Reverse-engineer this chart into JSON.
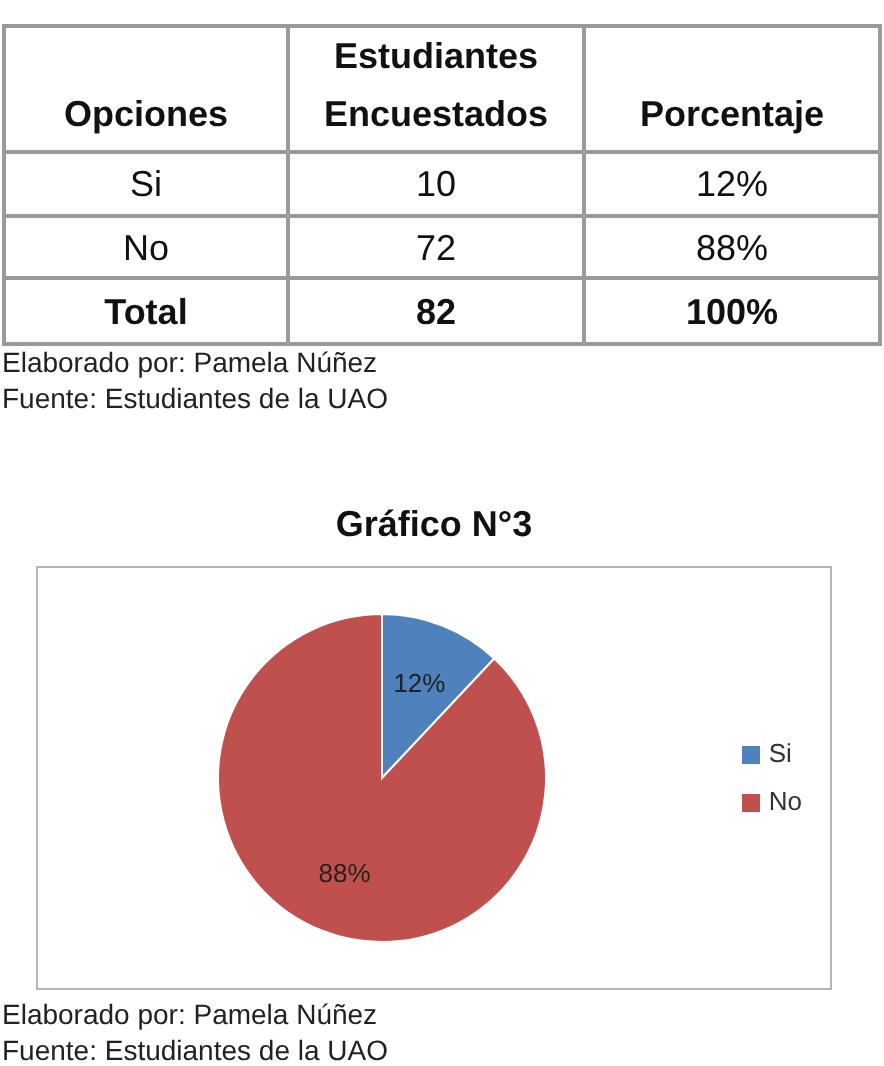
{
  "chart_data": [
    {
      "type": "other",
      "ylabel": "Opciones",
      "categories": [
        "Si",
        "No",
        "Total"
      ],
      "series": [
        {
          "name": "Estudiantes Encuestados",
          "values": [
            10,
            72,
            82
          ]
        },
        {
          "name": "Porcentaje",
          "values": [
            12,
            88,
            100
          ],
          "value_labels": [
            "12%",
            "88%",
            "100%"
          ]
        }
      ],
      "data_labels": true,
      "annotations": [
        "Elaborado por: Pamela Núñez",
        "Fuente: Estudiantes de la UAO"
      ]
    },
    {
      "type": "pie",
      "title": "Gráfico N°3",
      "categories": [
        "Si",
        "No"
      ],
      "values": [
        12,
        88
      ],
      "colors": [
        "#4f81bd",
        "#c0504d"
      ],
      "value_labels": [
        "12%",
        "88%"
      ],
      "legend": "right",
      "annotations": [
        "Elaborado por: Pamela Núñez",
        "Fuente: Estudiantes de la UAO"
      ]
    }
  ]
}
